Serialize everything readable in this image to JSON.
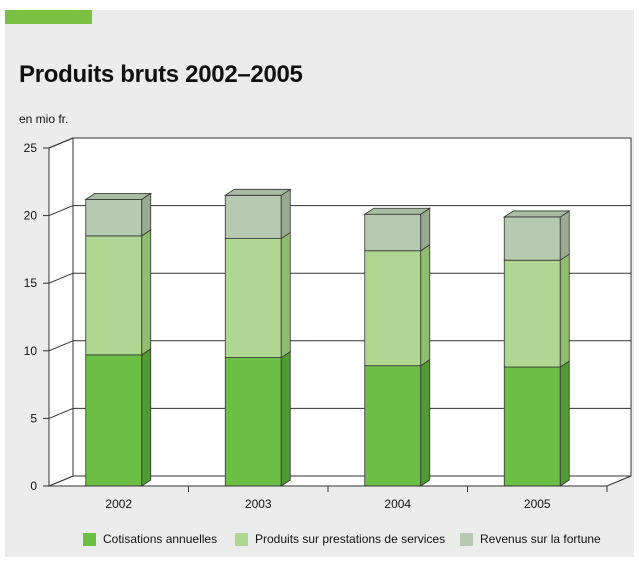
{
  "title": "Produits bruts 2002–2005",
  "unit_label": "en mio fr.",
  "colors": {
    "accent": "#7cc043",
    "panel": "#ececec",
    "plot_bg": "#ffffff",
    "grid": "#333333",
    "series": [
      "#6cbf45",
      "#afd791",
      "#b7c9b0"
    ],
    "series_side": [
      "#4f9a31",
      "#8fbc6f",
      "#98ab91"
    ],
    "series_top": [
      "#5ea83b",
      "#9fcc80",
      "#a7bca0"
    ]
  },
  "chart_data": {
    "type": "bar",
    "stacked": true,
    "three_d": true,
    "categories": [
      "2002",
      "2003",
      "2004",
      "2005"
    ],
    "series": [
      {
        "name": "Cotisations annuelles",
        "values": [
          9.7,
          9.5,
          8.9,
          8.8
        ]
      },
      {
        "name": "Produits sur prestations de services",
        "values": [
          8.8,
          8.8,
          8.5,
          7.9
        ]
      },
      {
        "name": "Revenus sur la fortune",
        "values": [
          2.7,
          3.2,
          2.7,
          3.2
        ]
      }
    ],
    "title": "Produits bruts 2002–2005",
    "ylabel": "en mio fr.",
    "ylim": [
      0,
      25
    ],
    "yticks": [
      "0",
      "5",
      "10",
      "15",
      "20",
      "25"
    ],
    "grid": true,
    "legend": "bottom"
  }
}
